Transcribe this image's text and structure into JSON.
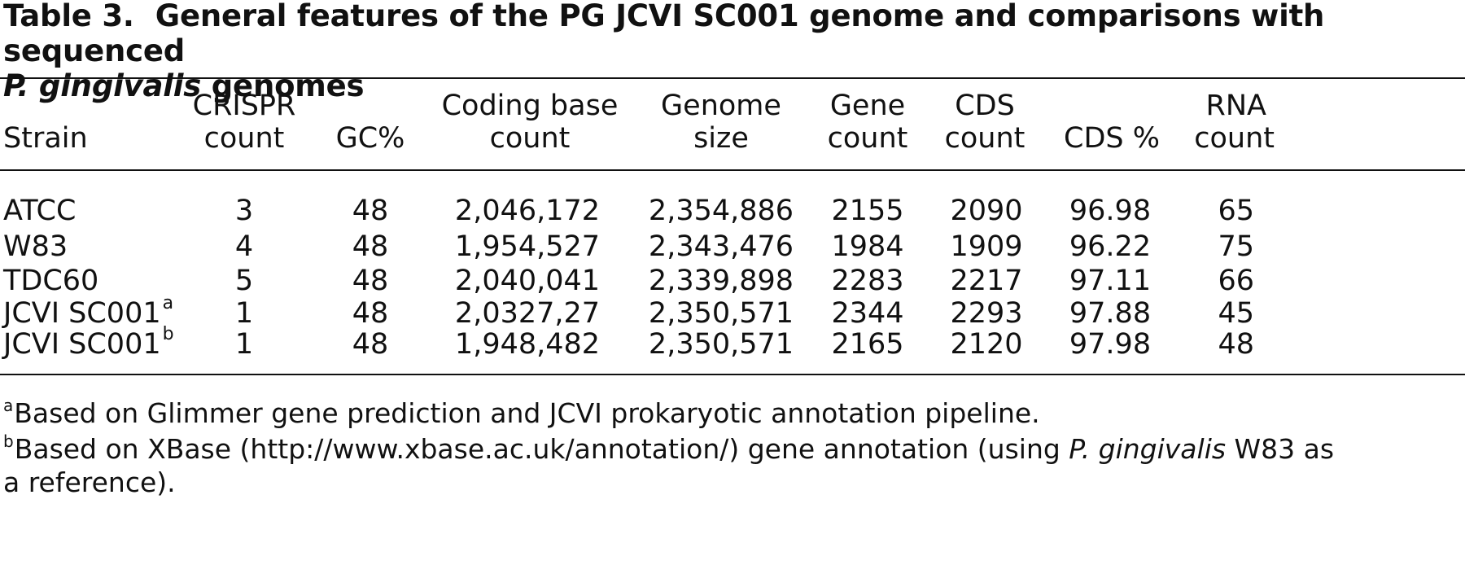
{
  "caption": {
    "number": "Table 3.",
    "title_part1": "General features of the PG JCVI SC001 genome and comparisons with sequenced",
    "title_italic": "P. gingivalis",
    "title_part2": " genomes"
  },
  "table": {
    "headers": [
      {
        "line1": "",
        "line2": "Strain"
      },
      {
        "line1": "CRISPR",
        "line2": "count"
      },
      {
        "line1": "",
        "line2": "GC%"
      },
      {
        "line1": "Coding base",
        "line2": "count"
      },
      {
        "line1": "Genome",
        "line2": "size"
      },
      {
        "line1": "Gene",
        "line2": "count"
      },
      {
        "line1": "CDS",
        "line2": "count"
      },
      {
        "line1": "",
        "line2": "CDS %"
      },
      {
        "line1": "RNA",
        "line2": "count"
      }
    ],
    "rows": [
      {
        "strain": "ATCC",
        "sup": "",
        "crispr": "3",
        "gc": "48",
        "coding": "2,046,172",
        "genome": "2,354,886",
        "gene": "2155",
        "cds": "2090",
        "cds_pct": "96.98",
        "rna": "65"
      },
      {
        "strain": "W83",
        "sup": "",
        "crispr": "4",
        "gc": "48",
        "coding": "1,954,527",
        "genome": "2,343,476",
        "gene": "1984",
        "cds": "1909",
        "cds_pct": "96.22",
        "rna": "75"
      },
      {
        "strain": "TDC60",
        "sup": "",
        "crispr": "5",
        "gc": "48",
        "coding": "2,040,041",
        "genome": "2,339,898",
        "gene": "2283",
        "cds": "2217",
        "cds_pct": "97.11",
        "rna": "66"
      },
      {
        "strain": "JCVI SC001",
        "sup": "a",
        "crispr": "1",
        "gc": "48",
        "coding": "2,0327,27",
        "genome": "2,350,571",
        "gene": "2344",
        "cds": "2293",
        "cds_pct": "97.88",
        "rna": "45"
      },
      {
        "strain": "JCVI SC001",
        "sup": "b",
        "crispr": "1",
        "gc": "48",
        "coding": "1,948,482",
        "genome": "2,350,571",
        "gene": "2165",
        "cds": "2120",
        "cds_pct": "97.98",
        "rna": "48"
      }
    ]
  },
  "footnotes": {
    "a": {
      "mark": "a",
      "text": "Based on Glimmer gene prediction and JCVI prokaryotic annotation pipeline."
    },
    "b": {
      "mark": "b",
      "text_part1": "Based on XBase (http://www.xbase.ac.uk/annotation/) gene annotation (using ",
      "text_italic": "P. gingivalis",
      "text_part2": " W83 as",
      "text_line2": "a reference)."
    }
  }
}
